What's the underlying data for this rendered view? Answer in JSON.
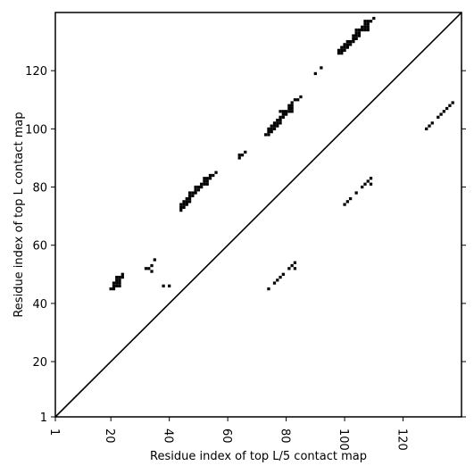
{
  "chart_data": {
    "type": "scatter",
    "xlabel": "Residue index of top L/5 contact map",
    "ylabel": "Residue index of top L contact map",
    "xlim": [
      1,
      140
    ],
    "ylim": [
      1,
      140
    ],
    "x_ticks": [
      1,
      20,
      40,
      60,
      80,
      100,
      120
    ],
    "y_ticks": [
      1,
      20,
      40,
      60,
      80,
      100,
      120
    ],
    "diagonal": true,
    "marker": "square",
    "marker_color": "#000000",
    "upper_triangle_points": [
      [
        20,
        45
      ],
      [
        21,
        45
      ],
      [
        21,
        46
      ],
      [
        21,
        47
      ],
      [
        22,
        46
      ],
      [
        22,
        47
      ],
      [
        22,
        48
      ],
      [
        22,
        49
      ],
      [
        23,
        46
      ],
      [
        23,
        47
      ],
      [
        23,
        48
      ],
      [
        23,
        49
      ],
      [
        24,
        49
      ],
      [
        24,
        50
      ],
      [
        32,
        52
      ],
      [
        33,
        52
      ],
      [
        34,
        51
      ],
      [
        34,
        53
      ],
      [
        35,
        55
      ],
      [
        38,
        46
      ],
      [
        40,
        46
      ],
      [
        44,
        72
      ],
      [
        44,
        73
      ],
      [
        44,
        74
      ],
      [
        45,
        73
      ],
      [
        45,
        74
      ],
      [
        45,
        75
      ],
      [
        46,
        74
      ],
      [
        46,
        75
      ],
      [
        46,
        76
      ],
      [
        47,
        75
      ],
      [
        47,
        76
      ],
      [
        47,
        77
      ],
      [
        47,
        78
      ],
      [
        48,
        77
      ],
      [
        48,
        78
      ],
      [
        49,
        78
      ],
      [
        49,
        79
      ],
      [
        49,
        80
      ],
      [
        50,
        79
      ],
      [
        50,
        80
      ],
      [
        51,
        80
      ],
      [
        51,
        81
      ],
      [
        52,
        81
      ],
      [
        52,
        82
      ],
      [
        52,
        83
      ],
      [
        53,
        81
      ],
      [
        53,
        82
      ],
      [
        53,
        83
      ],
      [
        54,
        83
      ],
      [
        54,
        84
      ],
      [
        55,
        84
      ],
      [
        56,
        85
      ],
      [
        64,
        90
      ],
      [
        64,
        91
      ],
      [
        65,
        91
      ],
      [
        66,
        92
      ],
      [
        73,
        98
      ],
      [
        74,
        98
      ],
      [
        74,
        99
      ],
      [
        74,
        100
      ],
      [
        75,
        99
      ],
      [
        75,
        100
      ],
      [
        75,
        101
      ],
      [
        76,
        100
      ],
      [
        76,
        101
      ],
      [
        76,
        102
      ],
      [
        77,
        101
      ],
      [
        77,
        102
      ],
      [
        77,
        103
      ],
      [
        78,
        102
      ],
      [
        78,
        103
      ],
      [
        78,
        104
      ],
      [
        78,
        106
      ],
      [
        79,
        104
      ],
      [
        79,
        105
      ],
      [
        79,
        106
      ],
      [
        80,
        105
      ],
      [
        80,
        106
      ],
      [
        81,
        106
      ],
      [
        81,
        107
      ],
      [
        81,
        108
      ],
      [
        82,
        106
      ],
      [
        82,
        107
      ],
      [
        82,
        108
      ],
      [
        82,
        109
      ],
      [
        83,
        110
      ],
      [
        84,
        110
      ],
      [
        85,
        111
      ],
      [
        90,
        119
      ],
      [
        92,
        121
      ],
      [
        98,
        126
      ],
      [
        98,
        127
      ],
      [
        99,
        126
      ],
      [
        99,
        127
      ],
      [
        99,
        128
      ],
      [
        100,
        127
      ],
      [
        100,
        128
      ],
      [
        100,
        129
      ],
      [
        101,
        128
      ],
      [
        101,
        129
      ],
      [
        101,
        130
      ],
      [
        102,
        129
      ],
      [
        102,
        130
      ],
      [
        103,
        130
      ],
      [
        103,
        131
      ],
      [
        103,
        132
      ],
      [
        104,
        131
      ],
      [
        104,
        132
      ],
      [
        104,
        133
      ],
      [
        104,
        134
      ],
      [
        105,
        132
      ],
      [
        105,
        133
      ],
      [
        105,
        134
      ],
      [
        106,
        134
      ],
      [
        106,
        135
      ],
      [
        107,
        134
      ],
      [
        107,
        135
      ],
      [
        107,
        136
      ],
      [
        107,
        137
      ],
      [
        108,
        134
      ],
      [
        108,
        135
      ],
      [
        108,
        136
      ],
      [
        108,
        137
      ],
      [
        109,
        137
      ],
      [
        110,
        138
      ]
    ],
    "lower_triangle_points": [
      [
        74,
        45
      ],
      [
        76,
        47
      ],
      [
        77,
        48
      ],
      [
        78,
        49
      ],
      [
        79,
        50
      ],
      [
        81,
        52
      ],
      [
        82,
        53
      ],
      [
        83,
        52
      ],
      [
        83,
        54
      ],
      [
        100,
        74
      ],
      [
        101,
        75
      ],
      [
        102,
        76
      ],
      [
        104,
        78
      ],
      [
        106,
        80
      ],
      [
        107,
        81
      ],
      [
        108,
        82
      ],
      [
        109,
        81
      ],
      [
        109,
        83
      ],
      [
        128,
        100
      ],
      [
        129,
        101
      ],
      [
        130,
        102
      ],
      [
        132,
        104
      ],
      [
        133,
        105
      ],
      [
        134,
        106
      ],
      [
        135,
        107
      ],
      [
        136,
        108
      ],
      [
        137,
        109
      ]
    ]
  }
}
